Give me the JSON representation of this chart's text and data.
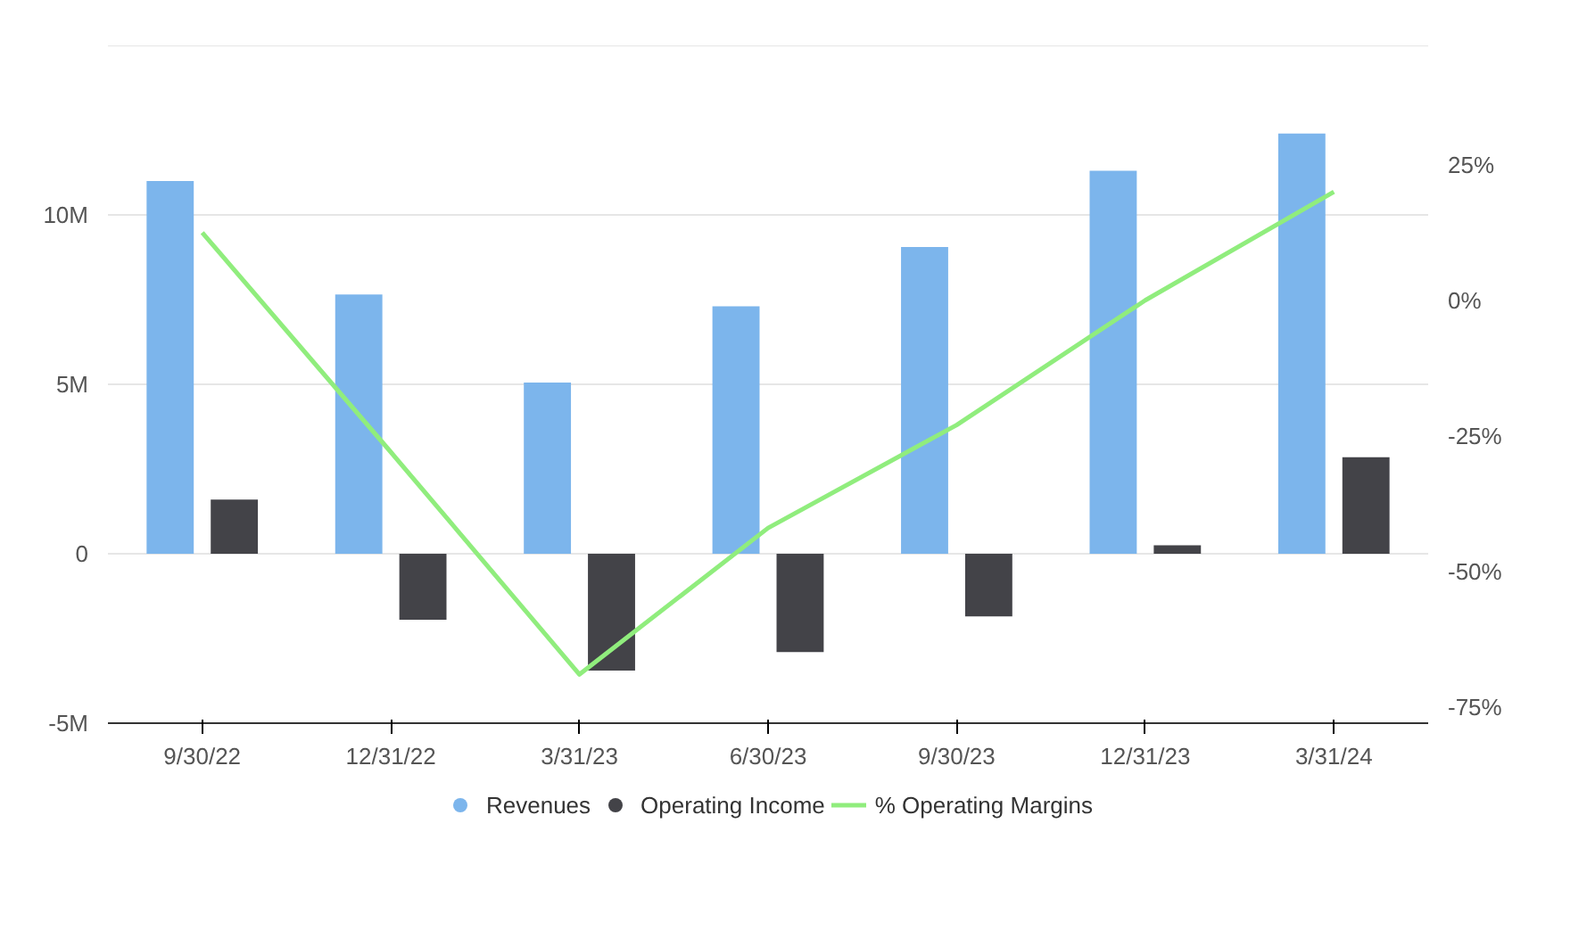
{
  "chart_data": {
    "type": "bar",
    "categories": [
      "9/30/22",
      "12/31/22",
      "3/31/23",
      "6/30/23",
      "9/30/23",
      "12/31/23",
      "3/31/24"
    ],
    "series": [
      {
        "name": "Revenues",
        "color": "#7cb5ec",
        "values": [
          11000000,
          7650000,
          5050000,
          7300000,
          9050000,
          11300000,
          12400000
        ]
      },
      {
        "name": "Operating Income",
        "color": "#434348",
        "values": [
          1600000,
          -1950000,
          -3450000,
          -2900000,
          -1850000,
          250000,
          2850000
        ]
      },
      {
        "name": "% Operating Margins",
        "type": "line",
        "axis": "y2",
        "color": "#90ed7d",
        "values": [
          12.5,
          -28,
          -69,
          -42,
          -23,
          0,
          20
        ]
      }
    ],
    "ylim": [
      -5000000,
      15000000
    ],
    "yticks": [
      {
        "value": -5000000,
        "label": "-5M"
      },
      {
        "value": 0,
        "label": "0"
      },
      {
        "value": 5000000,
        "label": "5M"
      },
      {
        "value": 10000000,
        "label": "10M"
      },
      {
        "value": 15000000,
        "label": null
      }
    ],
    "y2lim": [
      -78,
      47
    ],
    "y2ticks": [
      {
        "value": -75,
        "label": "-75%"
      },
      {
        "value": -50,
        "label": "-50%"
      },
      {
        "value": -25,
        "label": "-25%"
      },
      {
        "value": 0,
        "label": "0%"
      },
      {
        "value": 25,
        "label": "25%"
      }
    ],
    "grid": "y",
    "legend": "bottom",
    "marker": "none",
    "line_style": "solid"
  }
}
